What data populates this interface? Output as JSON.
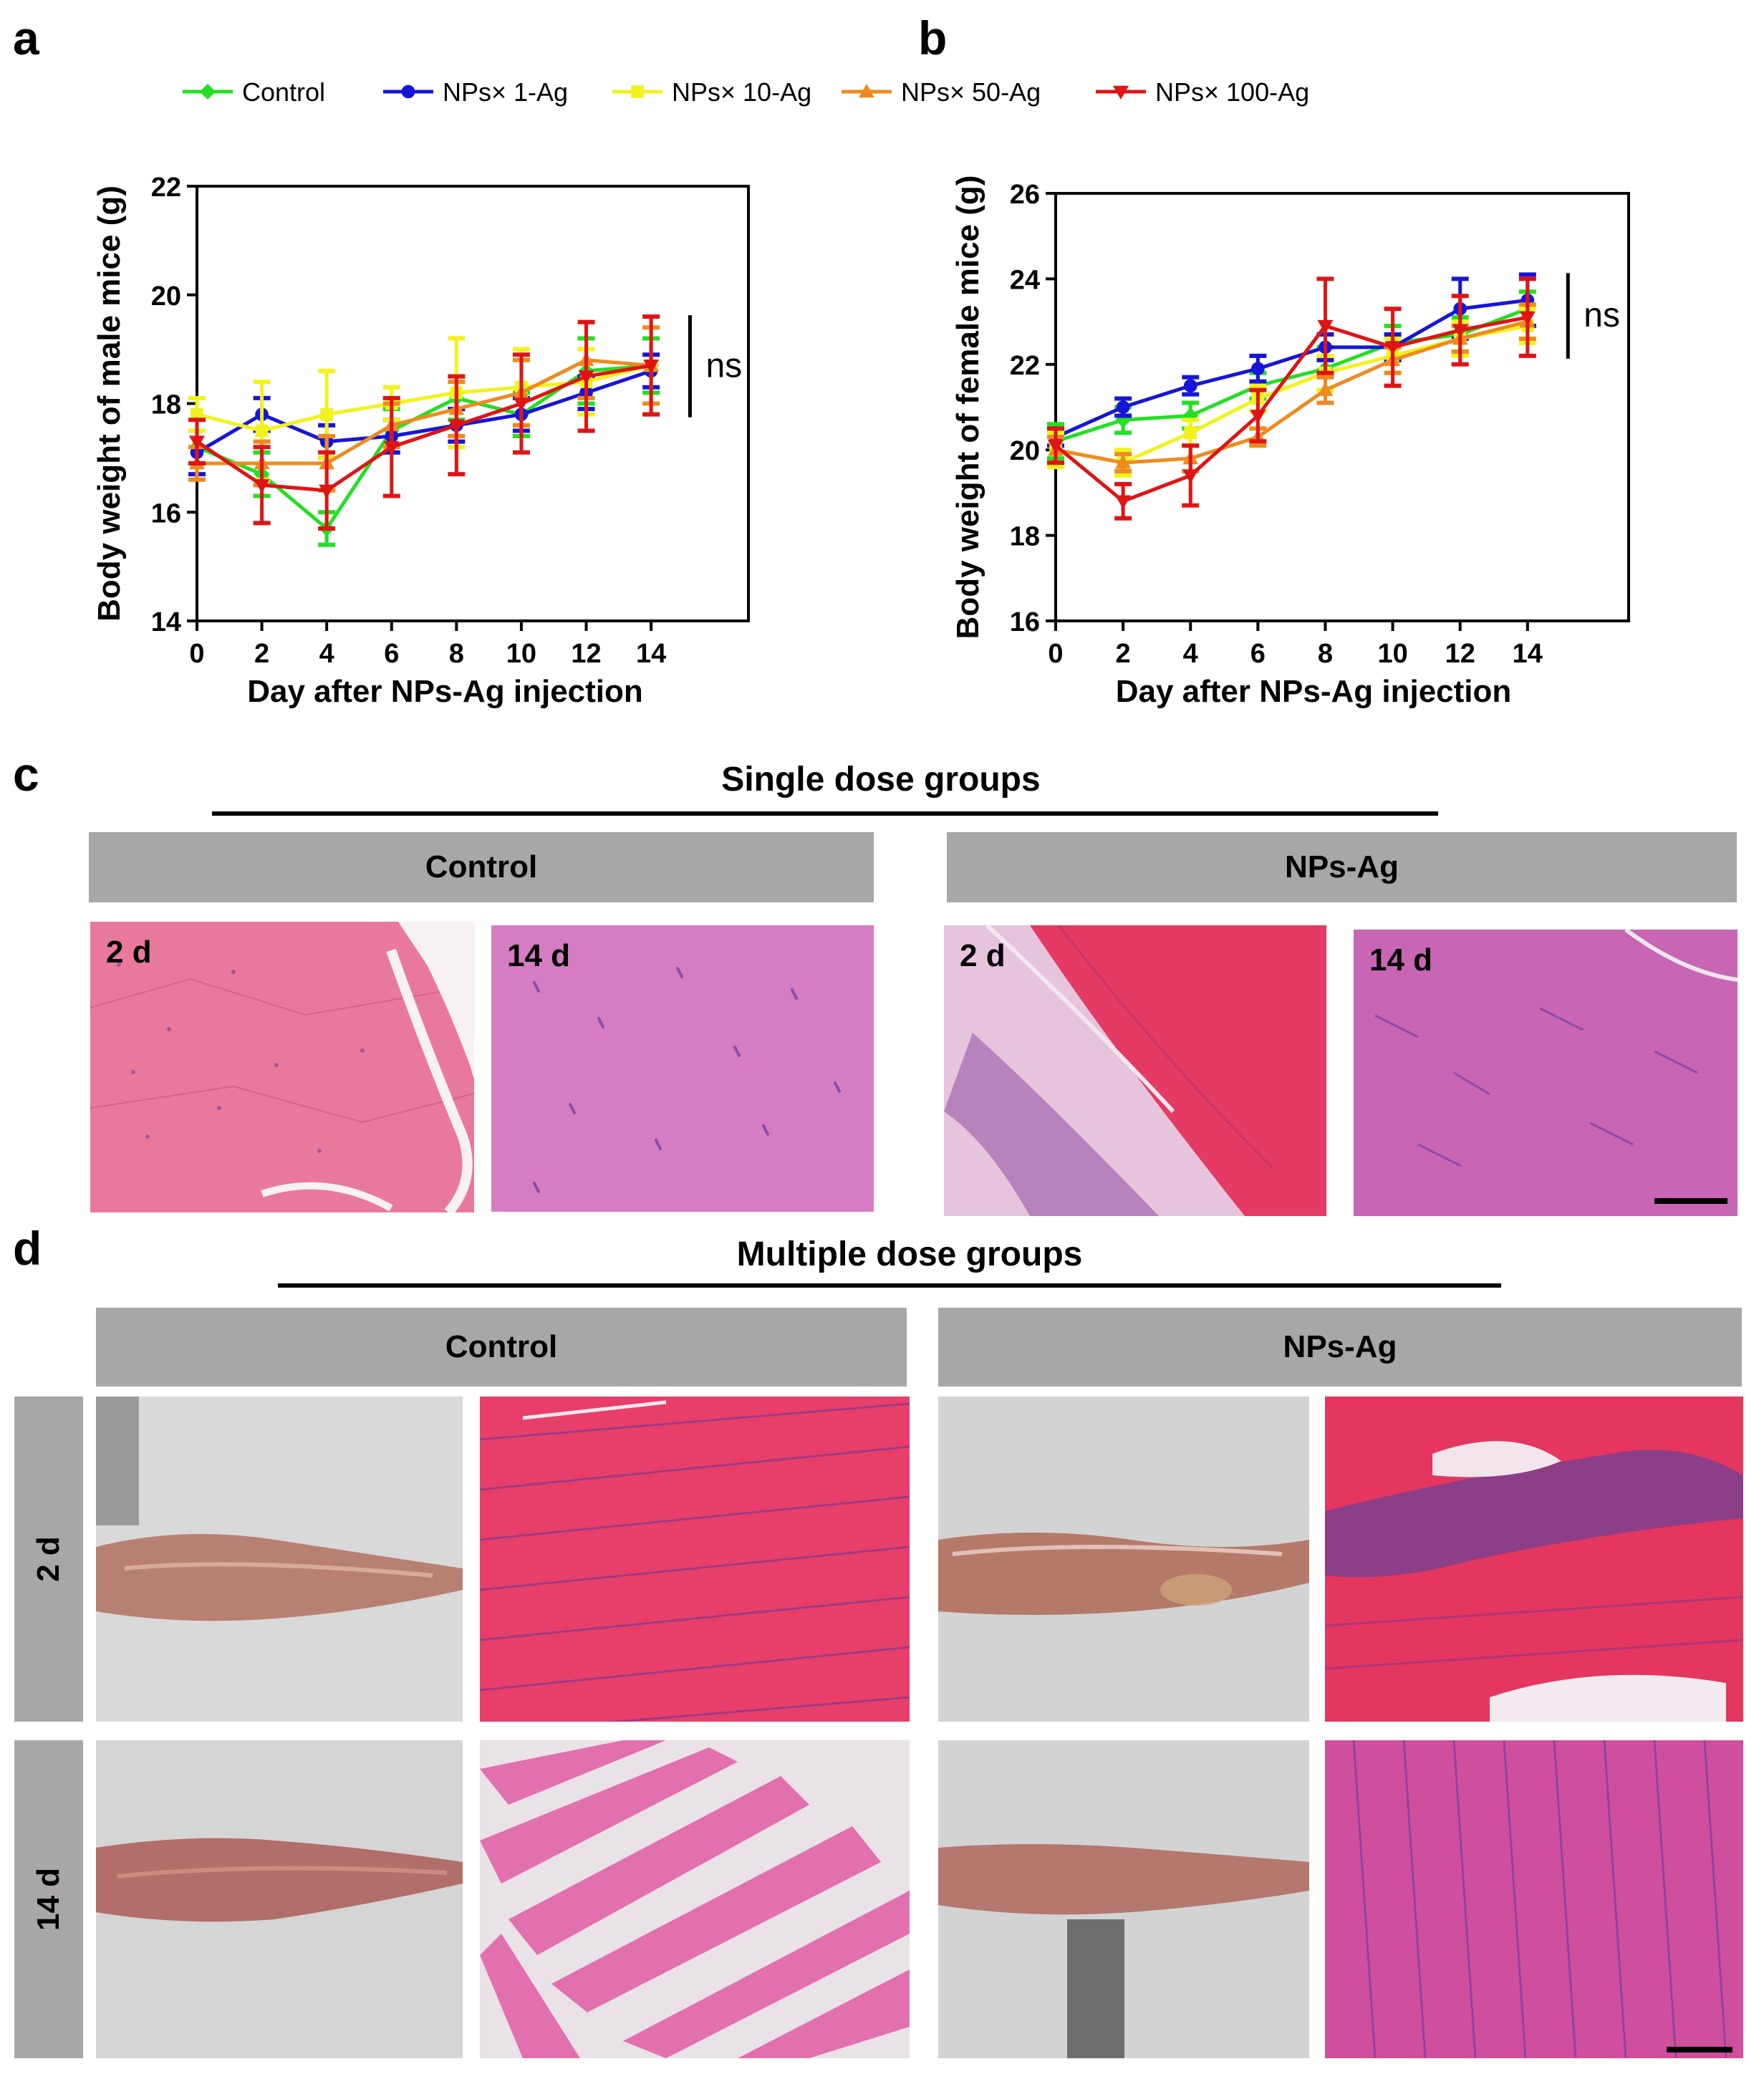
{
  "panels": {
    "a": "a",
    "b": "b",
    "c": "c",
    "d": "d"
  },
  "legend": [
    {
      "name": "Control",
      "color": "#22e022",
      "marker": "diamond"
    },
    {
      "name": "NPs× 1-Ag",
      "color": "#1616d8",
      "marker": "circle"
    },
    {
      "name": "NPs× 10-Ag",
      "color": "#f2f21c",
      "marker": "square"
    },
    {
      "name": "NPs× 50-Ag",
      "color": "#ee8a1e",
      "marker": "triangle-up"
    },
    {
      "name": "NPs× 100-Ag",
      "color": "#e01414",
      "marker": "triangle-down"
    }
  ],
  "chart_data": [
    {
      "id": "a",
      "type": "line",
      "ylabel": "Body weight of male mice (g)",
      "xlabel": "Day after NPs-Ag injection",
      "x": [
        0,
        2,
        4,
        6,
        8,
        10,
        12,
        14
      ],
      "xticks": [
        "0",
        "2",
        "4",
        "6",
        "8",
        "10",
        "12",
        "14"
      ],
      "yticks": [
        "14",
        "16",
        "18",
        "20",
        "22"
      ],
      "ylim": [
        14,
        22
      ],
      "xlim": [
        0,
        17
      ],
      "annotation": "ns",
      "series": [
        {
          "name": "Control",
          "values": [
            17.2,
            16.7,
            15.7,
            17.5,
            18.1,
            17.8,
            18.6,
            18.7
          ],
          "err": [
            0.3,
            0.4,
            0.3,
            0.4,
            0.4,
            0.4,
            0.6,
            0.5
          ]
        },
        {
          "name": "NPs× 1-Ag",
          "values": [
            17.1,
            17.8,
            17.3,
            17.4,
            17.6,
            17.8,
            18.2,
            18.6
          ],
          "err": [
            0.4,
            0.3,
            0.3,
            0.3,
            0.3,
            0.3,
            0.3,
            0.3
          ]
        },
        {
          "name": "NPs× 10-Ag",
          "values": [
            17.8,
            17.5,
            17.8,
            18.0,
            18.2,
            18.3,
            18.4,
            18.7
          ],
          "err": [
            0.3,
            0.9,
            0.8,
            0.3,
            1.0,
            0.7,
            0.6,
            0.9
          ]
        },
        {
          "name": "NPs× 50-Ag",
          "values": [
            16.9,
            16.9,
            16.9,
            17.6,
            17.9,
            18.2,
            18.8,
            18.7
          ],
          "err": [
            0.3,
            0.4,
            0.5,
            0.4,
            0.5,
            0.6,
            0.7,
            0.7
          ]
        },
        {
          "name": "NPs× 100-Ag",
          "values": [
            17.3,
            16.5,
            16.4,
            17.2,
            17.6,
            18.0,
            18.5,
            18.7
          ],
          "err": [
            0.4,
            0.7,
            0.7,
            0.9,
            0.9,
            0.9,
            1.0,
            0.9
          ]
        }
      ]
    },
    {
      "id": "b",
      "type": "line",
      "ylabel": "Body weight of female mice (g)",
      "xlabel": "Day after NPs-Ag  injection",
      "x": [
        0,
        2,
        4,
        6,
        8,
        10,
        12,
        14
      ],
      "xticks": [
        "0",
        "2",
        "4",
        "6",
        "8",
        "10",
        "12",
        "14"
      ],
      "yticks": [
        "16",
        "18",
        "20",
        "22",
        "24",
        "26"
      ],
      "ylim": [
        16,
        26
      ],
      "xlim": [
        0,
        17
      ],
      "annotation": "ns",
      "series": [
        {
          "name": "Control",
          "values": [
            20.2,
            20.7,
            20.8,
            21.5,
            21.9,
            22.5,
            22.7,
            23.3
          ],
          "err": [
            0.4,
            0.3,
            0.3,
            0.3,
            0.5,
            0.4,
            0.4,
            0.4
          ]
        },
        {
          "name": "NPs× 1-Ag",
          "values": [
            20.3,
            21.0,
            21.5,
            21.9,
            22.4,
            22.4,
            23.3,
            23.5
          ],
          "err": [
            0.2,
            0.2,
            0.2,
            0.3,
            0.3,
            0.3,
            0.7,
            0.6
          ]
        },
        {
          "name": "NPs× 10-Ag",
          "values": [
            20.0,
            19.7,
            20.4,
            21.2,
            21.8,
            22.2,
            22.6,
            22.9
          ],
          "err": [
            0.4,
            0.3,
            0.3,
            0.3,
            0.4,
            0.4,
            0.4,
            0.4
          ]
        },
        {
          "name": "NPs× 50-Ag",
          "values": [
            20.0,
            19.7,
            19.8,
            20.3,
            21.4,
            22.1,
            22.6,
            23.0
          ],
          "err": [
            0.3,
            0.2,
            0.3,
            0.2,
            0.3,
            0.3,
            0.3,
            0.4
          ]
        },
        {
          "name": "NPs× 100-Ag",
          "values": [
            20.1,
            18.8,
            19.4,
            20.8,
            22.9,
            22.4,
            22.8,
            23.1
          ],
          "err": [
            0.4,
            0.4,
            0.7,
            0.6,
            1.1,
            0.9,
            0.8,
            0.9
          ]
        }
      ]
    }
  ],
  "panel_c": {
    "title": "Single dose groups",
    "control_label": "Control",
    "nps_label": "NPs-Ag",
    "day2": "2 d",
    "day14": "14 d"
  },
  "panel_d": {
    "title": "Multiple dose groups",
    "control_label": "Control",
    "nps_label": "NPs-Ag",
    "row_2d": "2 d",
    "row_14d": "14 d"
  }
}
